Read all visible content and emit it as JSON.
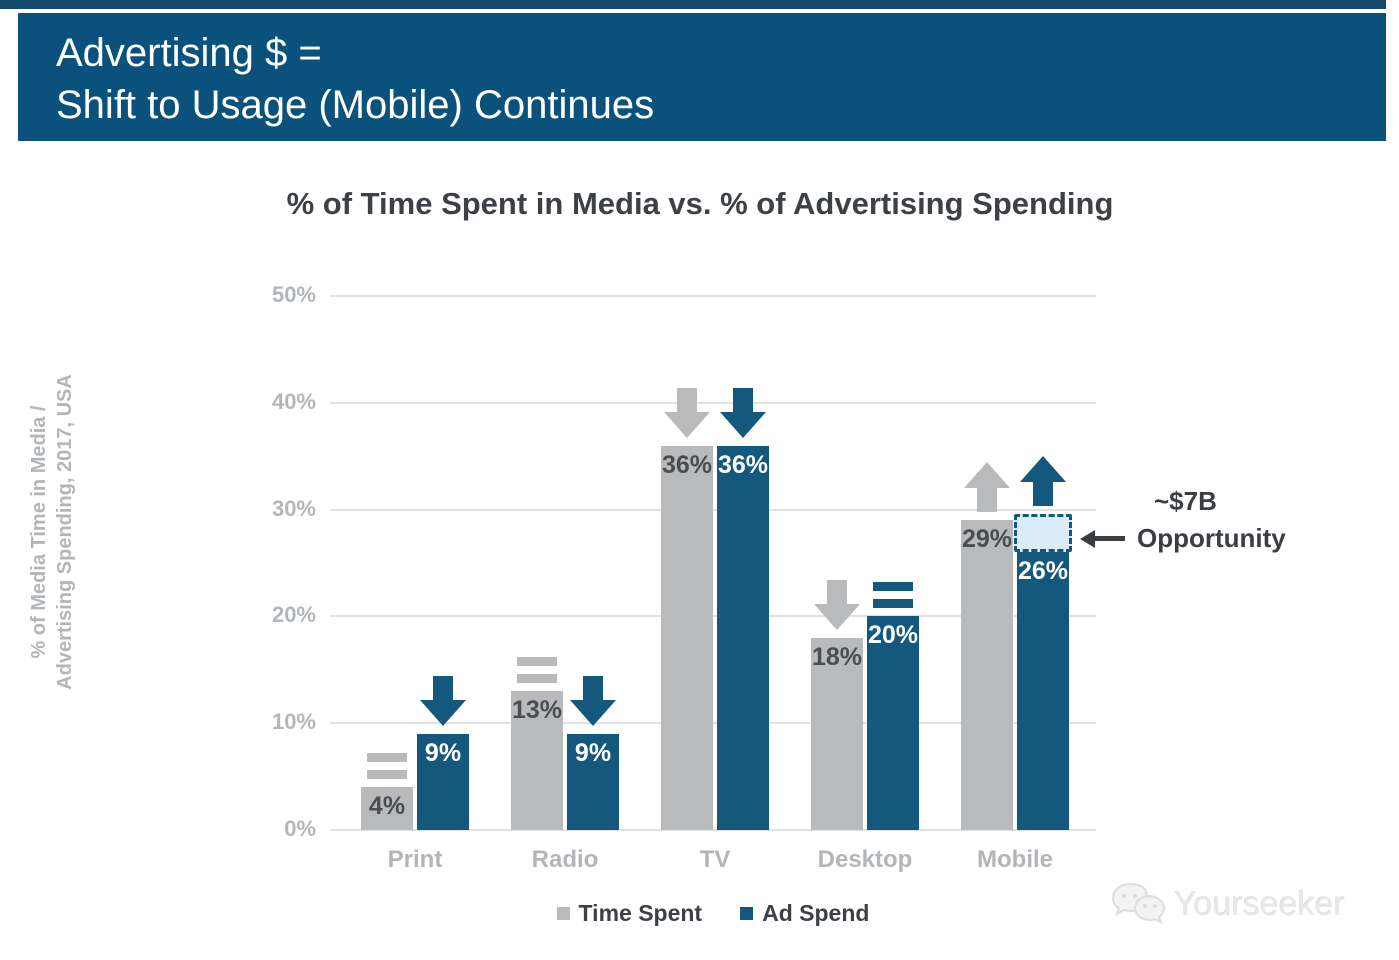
{
  "slide": {
    "header": {
      "line1": "Advertising $ =",
      "line2": "Shift to Usage (Mobile) Continues"
    },
    "header_bg": "#0a527b",
    "top_strip_color": "#134a6e",
    "watermark": {
      "text": "Yourseeker"
    }
  },
  "chart_data": {
    "type": "bar",
    "title": "% of Time Spent in Media vs. % of Advertising Spending",
    "ylabel": "% of Media Time in Media / Advertising Spending, 2017, USA",
    "ylabel_lines": [
      "% of Media Time in Media /",
      "Advertising Spending, 2017, USA"
    ],
    "categories": [
      "Print",
      "Radio",
      "TV",
      "Desktop",
      "Mobile"
    ],
    "series": [
      {
        "name": "Time Spent",
        "color": "#b9babc",
        "label_color": "#4b4d50",
        "values": [
          4,
          13,
          36,
          18,
          29
        ],
        "trends": [
          "flat",
          "flat",
          "down",
          "down",
          "up"
        ]
      },
      {
        "name": "Ad Spend",
        "color": "#14587e",
        "label_color": "#ffffff",
        "values": [
          9,
          9,
          36,
          20,
          26
        ],
        "trends": [
          "down",
          "down",
          "down",
          "flat",
          "up"
        ]
      }
    ],
    "value_suffix": "%",
    "ylim": [
      0,
      50
    ],
    "yticks": [
      50,
      40,
      30,
      20,
      10,
      0
    ],
    "ytick_suffix": "%",
    "grid": true,
    "legend_position": "bottom",
    "annotation": {
      "line1": "~$7B",
      "line2": "Opportunity"
    },
    "opportunity": {
      "category": "Mobile",
      "series": "Ad Spend",
      "from": 26,
      "to": 29.6,
      "fill": "#d9ecf8",
      "border": "#15577d",
      "label": "~$7B Opportunity"
    }
  }
}
